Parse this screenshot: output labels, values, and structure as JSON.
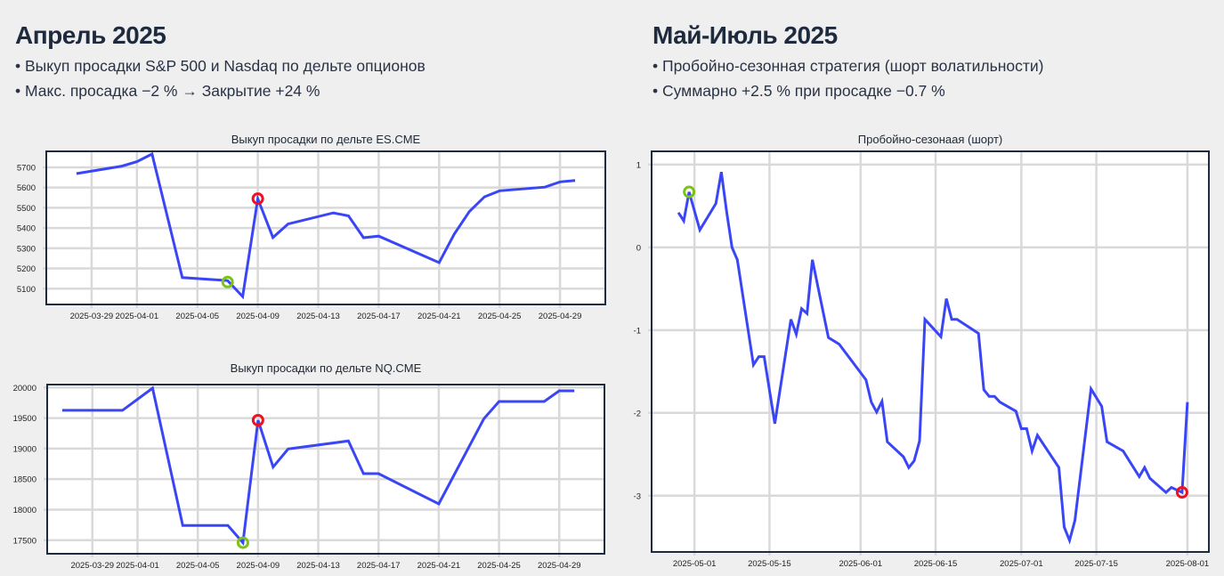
{
  "left": {
    "title": "Апрель 2025",
    "bullets": [
      "• Выкуп просадки S&P 500 и Nasdaq по дельте опционов",
      "• Макс. просадка −2 % → Закрытие +24 %"
    ]
  },
  "right": {
    "title": "Май-Июль 2025",
    "bullets": [
      "• Пробойно-сезонная стратегия (шорт волатильности)",
      "• Суммарно +2.5 % при просадке −0.7 %"
    ]
  },
  "colors": {
    "line": "#3a46f5",
    "grid": "#d9d9d9",
    "frame": "#1e2a3e",
    "entry": "#7cc413",
    "exit": "#f01020"
  },
  "chart_data": [
    {
      "type": "line",
      "title": "Выкуп просадки по дельте ES.CME",
      "xlim": [
        "2025-03-26",
        "2025-05-02"
      ],
      "ylim": [
        5022,
        5779
      ],
      "grid": true,
      "xticks": [
        "2025-03-29",
        "2025-04-01",
        "2025-04-05",
        "2025-04-09",
        "2025-04-13",
        "2025-04-17",
        "2025-04-21",
        "2025-04-25",
        "2025-04-29"
      ],
      "yticks": [
        5100,
        5200,
        5300,
        5400,
        5500,
        5600,
        5700
      ],
      "x": [
        "2025-03-28",
        "2025-03-31",
        "2025-04-01",
        "2025-04-02",
        "2025-04-04",
        "2025-04-07",
        "2025-04-08",
        "2025-04-09",
        "2025-04-10",
        "2025-04-11",
        "2025-04-14",
        "2025-04-15",
        "2025-04-16",
        "2025-04-17",
        "2025-04-21",
        "2025-04-22",
        "2025-04-23",
        "2025-04-24",
        "2025-04-25",
        "2025-04-28",
        "2025-04-29",
        "2025-04-30"
      ],
      "y": [
        5669,
        5706,
        5728,
        5766,
        5155,
        5140,
        5061,
        5545,
        5353,
        5420,
        5475,
        5460,
        5352,
        5360,
        5229,
        5370,
        5481,
        5554,
        5584,
        5602,
        5628,
        5635
      ],
      "markers": [
        {
          "x": "2025-04-07",
          "y": 5133,
          "color": "#7cc413"
        },
        {
          "x": "2025-04-09",
          "y": 5545,
          "color": "#f01020"
        }
      ]
    },
    {
      "type": "line",
      "title": "Выкуп просадки по дельте NQ.CME",
      "xlim": [
        "2025-03-26",
        "2025-05-02"
      ],
      "ylim": [
        17278,
        20048
      ],
      "grid": true,
      "xticks": [
        "2025-03-29",
        "2025-04-01",
        "2025-04-05",
        "2025-04-09",
        "2025-04-13",
        "2025-04-17",
        "2025-04-21",
        "2025-04-25",
        "2025-04-29"
      ],
      "yticks": [
        17500,
        18000,
        18500,
        19000,
        19500,
        20000
      ],
      "x": [
        "2025-03-27",
        "2025-03-31",
        "2025-04-02",
        "2025-04-04",
        "2025-04-07",
        "2025-04-08",
        "2025-04-09",
        "2025-04-10",
        "2025-04-11",
        "2025-04-15",
        "2025-04-16",
        "2025-04-17",
        "2025-04-21",
        "2025-04-24",
        "2025-04-25",
        "2025-04-28",
        "2025-04-29",
        "2025-04-30"
      ],
      "y": [
        19626,
        19626,
        19990,
        17740,
        17740,
        17459,
        19465,
        18698,
        18994,
        19125,
        18590,
        18590,
        18095,
        19490,
        19771,
        19771,
        19946,
        19946
      ],
      "markers": [
        {
          "x": "2025-04-08",
          "y": 17459,
          "color": "#7cc413"
        },
        {
          "x": "2025-04-09",
          "y": 19465,
          "color": "#f01020"
        }
      ]
    },
    {
      "type": "line",
      "title": "Пробойно-сезонаая (шорт)",
      "xlim": [
        "2025-04-23",
        "2025-08-05"
      ],
      "ylim": [
        -3.68,
        1.16
      ],
      "grid": true,
      "xticks": [
        "2025-05-01",
        "2025-05-15",
        "2025-06-01",
        "2025-06-15",
        "2025-07-01",
        "2025-07-15",
        "2025-08-01"
      ],
      "yticks": [
        -3,
        -2,
        -1,
        0,
        1
      ],
      "x": [
        "2025-04-28",
        "2025-04-29",
        "2025-04-30",
        "2025-05-02",
        "2025-05-05",
        "2025-05-06",
        "2025-05-07",
        "2025-05-08",
        "2025-05-09",
        "2025-05-12",
        "2025-05-13",
        "2025-05-14",
        "2025-05-16",
        "2025-05-19",
        "2025-05-20",
        "2025-05-21",
        "2025-05-22",
        "2025-05-23",
        "2025-05-26",
        "2025-05-28",
        "2025-06-02",
        "2025-06-03",
        "2025-06-04",
        "2025-06-05",
        "2025-06-06",
        "2025-06-09",
        "2025-06-10",
        "2025-06-11",
        "2025-06-12",
        "2025-06-13",
        "2025-06-16",
        "2025-06-17",
        "2025-06-18",
        "2025-06-19",
        "2025-06-23",
        "2025-06-24",
        "2025-06-25",
        "2025-06-26",
        "2025-06-27",
        "2025-06-30",
        "2025-07-01",
        "2025-07-02",
        "2025-07-03",
        "2025-07-04",
        "2025-07-08",
        "2025-07-09",
        "2025-07-10",
        "2025-07-11",
        "2025-07-14",
        "2025-07-16",
        "2025-07-17",
        "2025-07-20",
        "2025-07-23",
        "2025-07-24",
        "2025-07-25",
        "2025-07-28",
        "2025-07-29",
        "2025-07-30",
        "2025-07-31",
        "2025-08-01"
      ],
      "y": [
        0.42,
        0.32,
        0.67,
        0.21,
        0.53,
        0.91,
        0.43,
        0.0,
        -0.15,
        -1.42,
        -1.32,
        -1.32,
        -2.13,
        -0.87,
        -1.05,
        -0.74,
        -0.8,
        -0.15,
        -1.09,
        -1.17,
        -1.6,
        -1.87,
        -1.99,
        -1.86,
        -2.35,
        -2.53,
        -2.66,
        -2.58,
        -2.34,
        -0.87,
        -1.08,
        -0.62,
        -0.87,
        -0.87,
        -1.04,
        -1.72,
        -1.8,
        -1.8,
        -1.87,
        -1.98,
        -2.19,
        -2.19,
        -2.46,
        -2.27,
        -2.66,
        -3.38,
        -3.54,
        -3.3,
        -1.71,
        -1.92,
        -2.35,
        -2.46,
        -2.77,
        -2.66,
        -2.79,
        -2.96,
        -2.9,
        -2.93,
        -2.96,
        -1.87
      ],
      "markers": [
        {
          "x": "2025-04-30",
          "y": 0.67,
          "color": "#7cc413"
        },
        {
          "x": "2025-07-31",
          "y": -2.96,
          "color": "#f01020"
        }
      ]
    }
  ]
}
